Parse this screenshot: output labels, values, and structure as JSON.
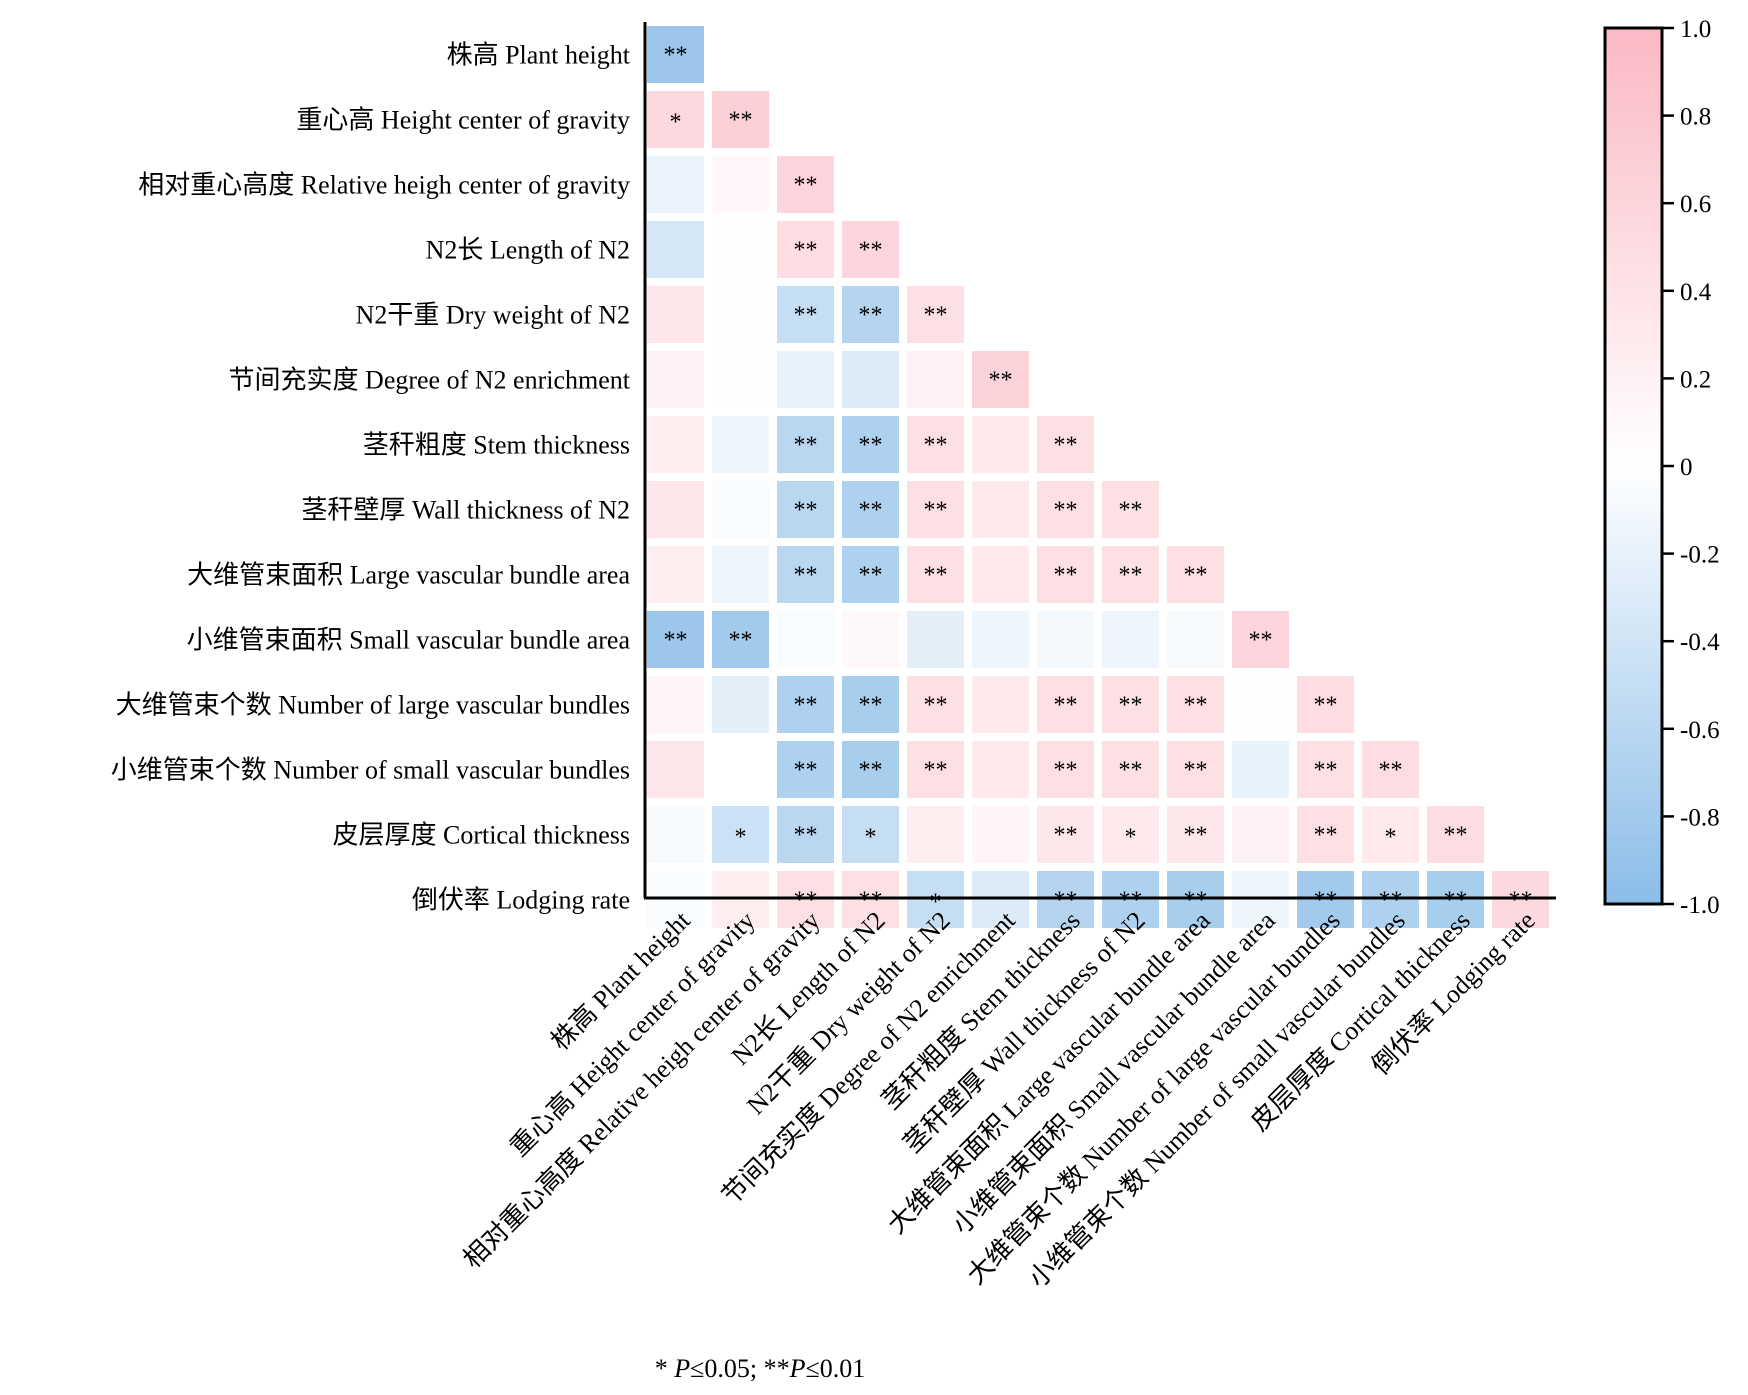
{
  "chart_data": {
    "type": "heatmap",
    "variables": [
      "株高 Plant height",
      "重心高 Height center of gravity",
      "相对重心高度 Relative heigh center of gravity",
      "N2长 Length of N2",
      "N2干重 Dry weight of N2",
      "节间充实度 Degree of N2 enrichment",
      "茎秆粗度 Stem thickness",
      "茎秆壁厚 Wall thickness of N2",
      "大维管束面积 Large vascular bundle area",
      "小维管束面积 Small vascular bundle area",
      "大维管束个数 Number of large vascular bundles",
      "小维管束个数 Number of small vascular bundles",
      "皮层厚度 Cortical thickness",
      "倒伏率 Lodging rate"
    ],
    "correlation": [
      [
        -0.85
      ],
      [
        0.55,
        0.7
      ],
      [
        -0.18,
        0.12,
        0.6
      ],
      [
        -0.35,
        0.02,
        0.5,
        0.6
      ],
      [
        0.35,
        0.02,
        -0.5,
        -0.65,
        0.45
      ],
      [
        0.2,
        0.05,
        -0.2,
        -0.3,
        0.2,
        0.65
      ],
      [
        0.25,
        -0.15,
        -0.6,
        -0.7,
        0.45,
        0.3,
        0.45
      ],
      [
        0.35,
        -0.05,
        -0.6,
        -0.7,
        0.45,
        0.3,
        0.45,
        0.45
      ],
      [
        0.25,
        -0.15,
        -0.6,
        -0.7,
        0.45,
        0.3,
        0.45,
        0.45,
        0.45
      ],
      [
        -0.85,
        -0.8,
        -0.05,
        0.1,
        -0.25,
        -0.15,
        -0.1,
        -0.15,
        -0.08,
        0.6
      ],
      [
        0.15,
        -0.25,
        -0.7,
        -0.75,
        0.45,
        0.3,
        0.45,
        0.45,
        0.45,
        0.02,
        0.5
      ],
      [
        0.35,
        0.0,
        -0.7,
        -0.75,
        0.45,
        0.3,
        0.45,
        0.45,
        0.45,
        -0.2,
        0.45,
        0.5
      ],
      [
        -0.08,
        -0.45,
        -0.6,
        -0.5,
        0.25,
        0.15,
        0.35,
        0.3,
        0.35,
        0.2,
        0.45,
        0.3,
        0.5
      ],
      [
        -0.05,
        0.25,
        0.45,
        0.45,
        -0.5,
        -0.3,
        -0.65,
        -0.7,
        -0.75,
        -0.15,
        -0.8,
        -0.7,
        -0.75,
        0.55
      ]
    ],
    "significance": [
      [
        "**"
      ],
      [
        "*",
        "**"
      ],
      [
        "",
        "",
        "**"
      ],
      [
        "",
        "",
        "**",
        "**"
      ],
      [
        "",
        "",
        "**",
        "**",
        "**"
      ],
      [
        "",
        "",
        "",
        "",
        "",
        "**"
      ],
      [
        "",
        "",
        "**",
        "**",
        "**",
        "",
        "**"
      ],
      [
        "",
        "",
        "**",
        "**",
        "**",
        "",
        "**",
        "**"
      ],
      [
        "",
        "",
        "**",
        "**",
        "**",
        "",
        "**",
        "**",
        "**"
      ],
      [
        "**",
        "**",
        "",
        "",
        "",
        "",
        "",
        "",
        "",
        "**"
      ],
      [
        "",
        "",
        "**",
        "**",
        "**",
        "",
        "**",
        "**",
        "**",
        "",
        "**"
      ],
      [
        "",
        "",
        "**",
        "**",
        "**",
        "",
        "**",
        "**",
        "**",
        "",
        "**",
        "**"
      ],
      [
        "",
        "*",
        "**",
        "*",
        "",
        "",
        "**",
        "*",
        "**",
        "",
        "**",
        "*",
        "**"
      ],
      [
        "",
        "",
        "**",
        "**",
        "*",
        "",
        "**",
        "**",
        "**",
        "",
        "**",
        "**",
        "**",
        "**"
      ]
    ],
    "colorbar": {
      "min": -1.0,
      "max": 1.0,
      "ticks": [
        "1.0",
        "0.8",
        "0.6",
        "0.4",
        "0.2",
        "0",
        "-0.2",
        "-0.4",
        "-0.6",
        "-0.8",
        "-1.0"
      ],
      "positive_color": "#fbb9c4",
      "negative_color": "#8bbde8",
      "zero_color": "#ffffff"
    },
    "footnote_parts": [
      "* ",
      "P",
      "≤0.05;  **",
      "P",
      "≤0.01"
    ],
    "grid": false,
    "legend_position": "right"
  }
}
